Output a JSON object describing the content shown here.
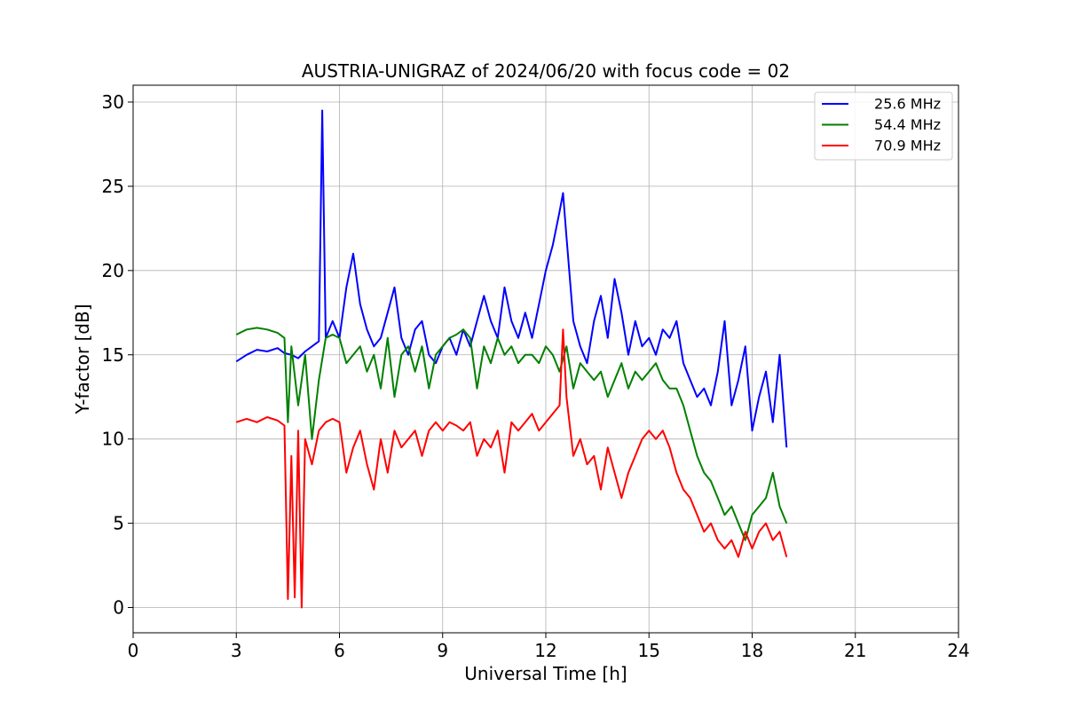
{
  "chart_data": {
    "type": "line",
    "title": "AUSTRIA-UNIGRAZ of 2024/06/20 with focus code = 02",
    "xlabel": "Universal Time [h]",
    "ylabel": "Y-factor [dB]",
    "xlim": [
      0,
      24
    ],
    "ylim": [
      -1.5,
      31
    ],
    "xticks": [
      0,
      3,
      6,
      9,
      12,
      15,
      18,
      21,
      24
    ],
    "xtick_labels": [
      "0",
      "3",
      "6",
      "9",
      "12",
      "15",
      "18",
      "21",
      "24"
    ],
    "yticks": [
      0,
      5,
      10,
      15,
      20,
      25,
      30
    ],
    "ytick_labels": [
      "0",
      "5",
      "10",
      "15",
      "20",
      "25",
      "30"
    ],
    "grid": true,
    "legend_position": "top-right",
    "series": [
      {
        "name": "25.6 MHz",
        "color": "#0000ff",
        "x": [
          3.0,
          3.3,
          3.6,
          3.9,
          4.2,
          4.4,
          4.6,
          4.8,
          5.0,
          5.2,
          5.4,
          5.5,
          5.6,
          5.8,
          6.0,
          6.2,
          6.4,
          6.6,
          6.8,
          7.0,
          7.2,
          7.4,
          7.6,
          7.8,
          8.0,
          8.2,
          8.4,
          8.6,
          8.8,
          9.0,
          9.2,
          9.4,
          9.6,
          9.8,
          10.0,
          10.2,
          10.4,
          10.6,
          10.8,
          11.0,
          11.2,
          11.4,
          11.6,
          11.8,
          12.0,
          12.2,
          12.4,
          12.5,
          12.6,
          12.8,
          13.0,
          13.2,
          13.4,
          13.6,
          13.8,
          14.0,
          14.2,
          14.4,
          14.6,
          14.8,
          15.0,
          15.2,
          15.4,
          15.6,
          15.8,
          16.0,
          16.2,
          16.4,
          16.6,
          16.8,
          17.0,
          17.2,
          17.4,
          17.6,
          17.8,
          18.0,
          18.2,
          18.4,
          18.6,
          18.8,
          19.0
        ],
        "y": [
          14.6,
          15.0,
          15.3,
          15.2,
          15.4,
          15.1,
          15.0,
          14.8,
          15.2,
          15.5,
          15.8,
          29.5,
          16.0,
          17.0,
          16.0,
          19.0,
          21.0,
          18.0,
          16.5,
          15.5,
          16.0,
          17.5,
          19.0,
          16.0,
          15.0,
          16.5,
          17.0,
          15.0,
          14.5,
          15.5,
          16.0,
          15.0,
          16.5,
          15.5,
          17.0,
          18.5,
          17.0,
          16.0,
          19.0,
          17.0,
          16.0,
          17.5,
          16.0,
          18.0,
          20.0,
          21.5,
          23.5,
          24.6,
          22.0,
          17.0,
          15.5,
          14.5,
          17.0,
          18.5,
          16.0,
          19.5,
          17.5,
          15.0,
          17.0,
          15.5,
          16.0,
          15.0,
          16.5,
          16.0,
          17.0,
          14.5,
          13.5,
          12.5,
          13.0,
          12.0,
          14.0,
          17.0,
          12.0,
          13.5,
          15.5,
          10.5,
          12.5,
          14.0,
          11.0,
          15.0,
          9.5
        ]
      },
      {
        "name": "54.4 MHz",
        "color": "#008000",
        "x": [
          3.0,
          3.3,
          3.6,
          3.9,
          4.2,
          4.4,
          4.5,
          4.6,
          4.8,
          5.0,
          5.2,
          5.4,
          5.6,
          5.8,
          6.0,
          6.2,
          6.4,
          6.6,
          6.8,
          7.0,
          7.2,
          7.4,
          7.6,
          7.8,
          8.0,
          8.2,
          8.4,
          8.6,
          8.8,
          9.0,
          9.2,
          9.4,
          9.6,
          9.8,
          10.0,
          10.2,
          10.4,
          10.6,
          10.8,
          11.0,
          11.2,
          11.4,
          11.6,
          11.8,
          12.0,
          12.2,
          12.4,
          12.6,
          12.8,
          13.0,
          13.2,
          13.4,
          13.6,
          13.8,
          14.0,
          14.2,
          14.4,
          14.6,
          14.8,
          15.0,
          15.2,
          15.4,
          15.6,
          15.8,
          16.0,
          16.2,
          16.4,
          16.6,
          16.8,
          17.0,
          17.2,
          17.4,
          17.6,
          17.8,
          18.0,
          18.2,
          18.4,
          18.6,
          18.8,
          19.0
        ],
        "y": [
          16.2,
          16.5,
          16.6,
          16.5,
          16.3,
          16.0,
          11.0,
          15.5,
          12.0,
          15.0,
          10.0,
          13.5,
          16.0,
          16.2,
          16.0,
          14.5,
          15.0,
          15.5,
          14.0,
          15.0,
          13.0,
          16.0,
          12.5,
          15.0,
          15.5,
          14.0,
          15.5,
          13.0,
          15.0,
          15.5,
          16.0,
          16.2,
          16.5,
          16.0,
          13.0,
          15.5,
          14.5,
          16.0,
          15.0,
          15.5,
          14.5,
          15.0,
          15.0,
          14.5,
          15.5,
          15.0,
          14.0,
          15.5,
          13.0,
          14.5,
          14.0,
          13.5,
          14.0,
          12.5,
          13.5,
          14.5,
          13.0,
          14.0,
          13.5,
          14.0,
          14.5,
          13.5,
          13.0,
          13.0,
          12.0,
          10.5,
          9.0,
          8.0,
          7.5,
          6.5,
          5.5,
          6.0,
          5.0,
          4.0,
          5.5,
          6.0,
          6.5,
          8.0,
          6.0,
          5.0
        ]
      },
      {
        "name": "70.9 MHz",
        "color": "#ff0000",
        "x": [
          3.0,
          3.3,
          3.6,
          3.9,
          4.2,
          4.4,
          4.5,
          4.6,
          4.7,
          4.8,
          4.9,
          5.0,
          5.2,
          5.4,
          5.6,
          5.8,
          6.0,
          6.2,
          6.4,
          6.6,
          6.8,
          7.0,
          7.2,
          7.4,
          7.6,
          7.8,
          8.0,
          8.2,
          8.4,
          8.6,
          8.8,
          9.0,
          9.2,
          9.4,
          9.6,
          9.8,
          10.0,
          10.2,
          10.4,
          10.6,
          10.8,
          11.0,
          11.2,
          11.4,
          11.6,
          11.8,
          12.0,
          12.2,
          12.4,
          12.5,
          12.6,
          12.8,
          13.0,
          13.2,
          13.4,
          13.6,
          13.8,
          14.0,
          14.2,
          14.4,
          14.6,
          14.8,
          15.0,
          15.2,
          15.4,
          15.6,
          15.8,
          16.0,
          16.2,
          16.4,
          16.6,
          16.8,
          17.0,
          17.2,
          17.4,
          17.6,
          17.8,
          18.0,
          18.2,
          18.4,
          18.6,
          18.8,
          19.0
        ],
        "y": [
          11.0,
          11.2,
          11.0,
          11.3,
          11.1,
          10.8,
          0.5,
          9.0,
          0.6,
          10.5,
          0.0,
          10.0,
          8.5,
          10.5,
          11.0,
          11.2,
          11.0,
          8.0,
          9.5,
          10.5,
          8.5,
          7.0,
          10.0,
          8.0,
          10.5,
          9.5,
          10.0,
          10.5,
          9.0,
          10.5,
          11.0,
          10.5,
          11.0,
          10.8,
          10.5,
          11.0,
          9.0,
          10.0,
          9.5,
          10.5,
          8.0,
          11.0,
          10.5,
          11.0,
          11.5,
          10.5,
          11.0,
          11.5,
          12.0,
          16.5,
          12.5,
          9.0,
          10.0,
          8.5,
          9.0,
          7.0,
          9.5,
          8.0,
          6.5,
          8.0,
          9.0,
          10.0,
          10.5,
          10.0,
          10.5,
          9.5,
          8.0,
          7.0,
          6.5,
          5.5,
          4.5,
          5.0,
          4.0,
          3.5,
          4.0,
          3.0,
          4.5,
          3.5,
          4.5,
          5.0,
          4.0,
          4.5,
          3.0
        ]
      }
    ]
  }
}
